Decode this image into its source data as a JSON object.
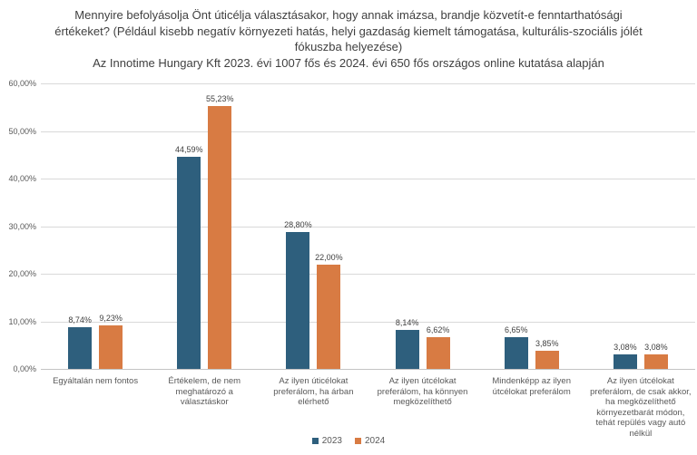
{
  "chart_data": {
    "type": "bar",
    "title": "Mennyire befolyásolja Önt úticélja választásakor, hogy annak imázsa, brandje közvetít-e fenntarthatósági értékeket? (Például kisebb negatív környezeti hatás, helyi gazdaság kiemelt támogatása, kulturális-szociális jólét fókuszba helyezése)",
    "subtitle": "Az Innotime Hungary Kft 2023. évi 1007 fős és 2024. évi 650 fős országos online kutatása alapján",
    "categories": [
      "Egyáltalán nem fontos",
      "Értékelem, de nem meghatározó a választáskor",
      "Az ilyen úticélokat preferálom, ha árban elérhető",
      "Az ilyen útcélokat preferálom, ha könnyen megközelíthető",
      "Mindenképp az ilyen útcélokat preferálom",
      "Az ilyen útcélokat preferálom, de csak akkor, ha megközelíthető környezetbarát módon, tehát repülés vagy autó nélkül"
    ],
    "series": [
      {
        "name": "2023",
        "color": "#2e5f7d",
        "values": [
          8.74,
          44.59,
          28.8,
          8.14,
          6.65,
          3.08
        ],
        "labels": [
          "8,74%",
          "44,59%",
          "28,80%",
          "8,14%",
          "6,65%",
          "3,08%"
        ]
      },
      {
        "name": "2024",
        "color": "#d87b43",
        "values": [
          9.23,
          55.23,
          22.0,
          6.62,
          3.85,
          3.08
        ],
        "labels": [
          "9,23%",
          "55,23%",
          "22,00%",
          "6,62%",
          "3,85%",
          "3,08%"
        ]
      }
    ],
    "y_axis": {
      "min": 0,
      "max": 60,
      "step": 10,
      "tick_labels": [
        "0,00%",
        "10,00%",
        "20,00%",
        "30,00%",
        "40,00%",
        "50,00%",
        "60,00%"
      ]
    },
    "legend_position": "bottom",
    "grid": true,
    "colors": {
      "gridline": "#d9d9d9",
      "axis_text": "#595959",
      "data_label_text": "#404040",
      "title_text": "#404040",
      "background": "#ffffff"
    }
  }
}
